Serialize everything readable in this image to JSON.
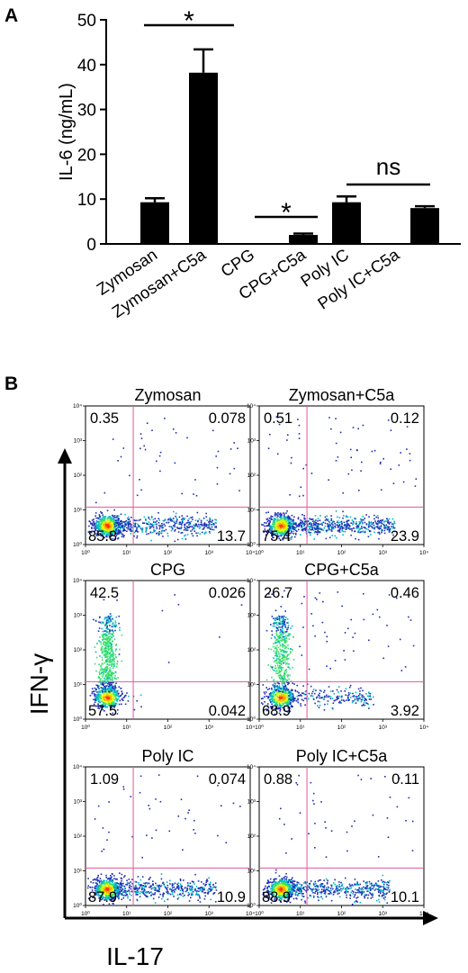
{
  "chart_data": [
    {
      "type": "bar",
      "panel_label": "A",
      "title": "",
      "xlabel": "",
      "ylabel": "IL-6 (ng/mL)",
      "ylim": [
        0,
        50
      ],
      "yticks": [
        "0",
        "10",
        "20",
        "30",
        "40",
        "50"
      ],
      "categories": [
        "Zymosan",
        "Zymosan+C5a",
        "CPG",
        "CPG+C5a",
        "Poly IC",
        "Poly IC+C5a"
      ],
      "values": [
        9.3,
        38.2,
        0,
        2.0,
        9.3,
        8.0
      ],
      "errors": [
        0.9,
        5.2,
        0,
        0.3,
        1.3,
        0.4
      ],
      "annotations": [
        {
          "text": "*",
          "between": [
            0,
            1
          ]
        },
        {
          "text": "*",
          "between": [
            2,
            3
          ]
        },
        {
          "text": "ns",
          "between": [
            4,
            5
          ]
        }
      ]
    },
    {
      "type": "scatter",
      "subtype": "flow-cytometry-density",
      "panel_label": "B",
      "xlabel": "IL-17",
      "ylabel": "IFN-γ",
      "axis_scale": "log",
      "axis_range": [
        1,
        10000
      ],
      "tick_labels": [
        "10⁰",
        "10¹",
        "10²",
        "10³",
        "10⁴"
      ],
      "gate_line_color": "#e0579b",
      "panels": [
        {
          "title": "Zymosan",
          "ul": "0.35",
          "ur": "0.078",
          "ll": "85.8",
          "lr": "13.7"
        },
        {
          "title": "Zymosan+C5a",
          "ul": "0.51",
          "ur": "0.12",
          "ll": "75.4",
          "lr": "23.9"
        },
        {
          "title": "CPG",
          "ul": "42.5",
          "ur": "0.026",
          "ll": "57.5",
          "lr": "0.042"
        },
        {
          "title": "CPG+C5a",
          "ul": "26.7",
          "ur": "0.46",
          "ll": "68.9",
          "lr": "3.92"
        },
        {
          "title": "Poly IC",
          "ul": "1.09",
          "ur": "0.074",
          "ll": "87.9",
          "lr": "10.9"
        },
        {
          "title": "Poly IC+C5a",
          "ul": "0.88",
          "ur": "0.11",
          "ll": "88.9",
          "lr": "10.1"
        }
      ]
    }
  ]
}
